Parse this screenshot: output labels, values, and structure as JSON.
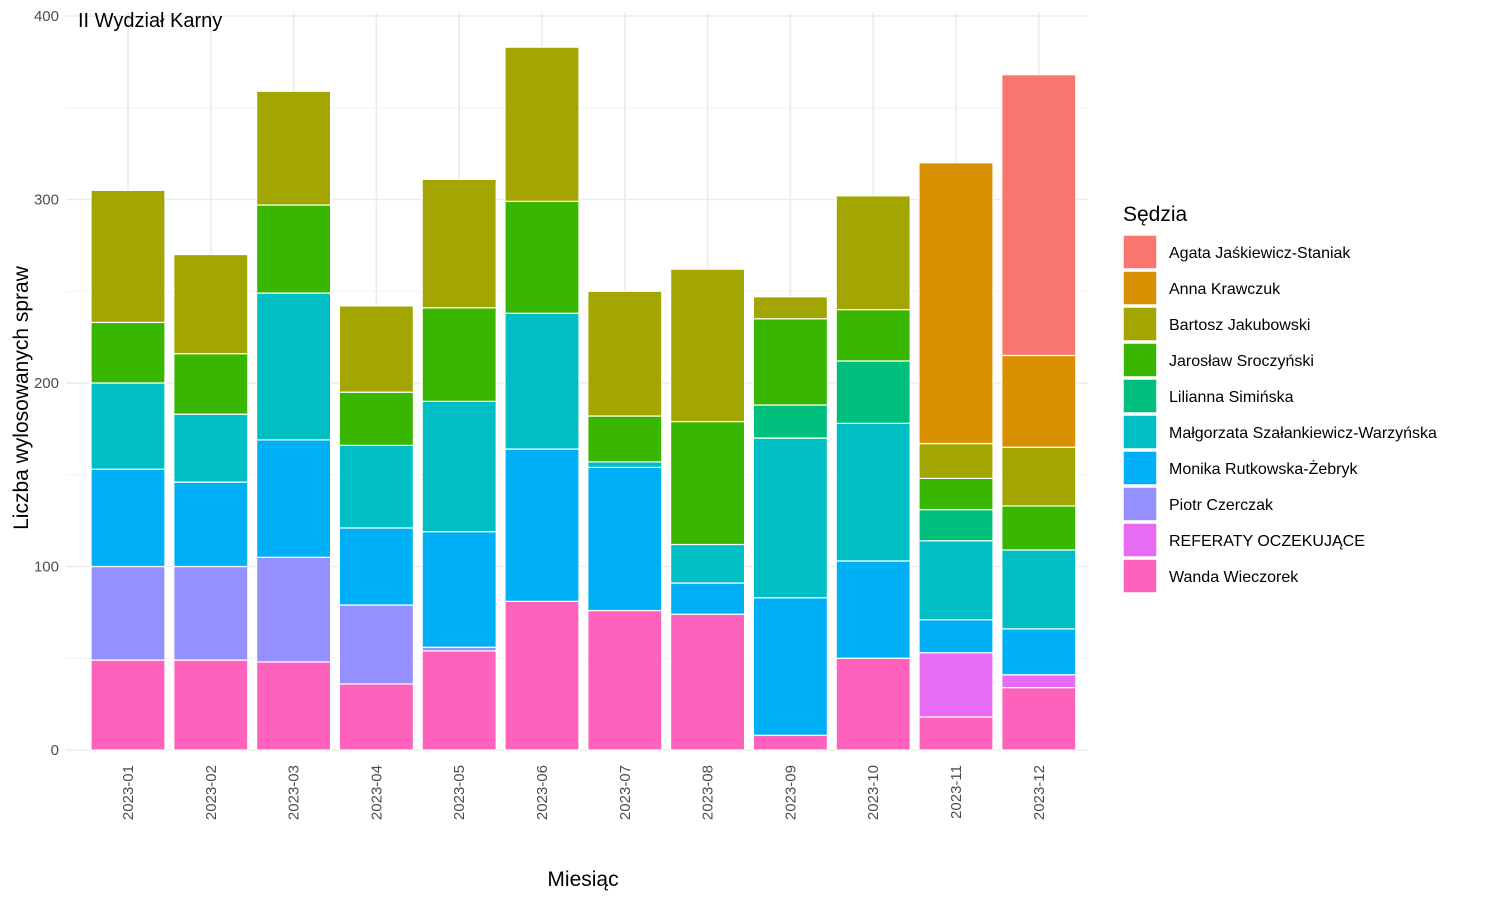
{
  "chart_data": {
    "type": "bar",
    "stacked": true,
    "title": "II Wydział Karny",
    "xlabel": "Miesiąc",
    "ylabel": "Liczba wylosowanych spraw",
    "ylim": [
      0,
      400
    ],
    "yticks": [
      0,
      100,
      200,
      300,
      400
    ],
    "grid": true,
    "legend_title": "Sędzia",
    "legend_position": "right",
    "categories": [
      "2023-01",
      "2023-02",
      "2023-03",
      "2023-04",
      "2023-05",
      "2023-06",
      "2023-07",
      "2023-08",
      "2023-09",
      "2023-10",
      "2023-11",
      "2023-12"
    ],
    "series": [
      {
        "name": "Agata Jaśkiewicz-Staniak",
        "color": "#F8766D",
        "values": [
          0,
          0,
          0,
          0,
          0,
          0,
          0,
          0,
          0,
          0,
          0,
          153
        ]
      },
      {
        "name": "Anna Krawczuk",
        "color": "#D89000",
        "values": [
          0,
          0,
          0,
          0,
          0,
          0,
          0,
          0,
          0,
          0,
          153,
          50
        ]
      },
      {
        "name": "Bartosz Jakubowski",
        "color": "#A3A500",
        "values": [
          72,
          54,
          62,
          47,
          70,
          84,
          68,
          83,
          12,
          62,
          19,
          32
        ]
      },
      {
        "name": "Jarosław Sroczyński",
        "color": "#39B600",
        "values": [
          33,
          33,
          48,
          29,
          51,
          61,
          25,
          67,
          47,
          28,
          17,
          24
        ]
      },
      {
        "name": "Lilianna Simińska",
        "color": "#00BF7D",
        "values": [
          0,
          0,
          0,
          0,
          0,
          0,
          0,
          0,
          18,
          34,
          17,
          0
        ]
      },
      {
        "name": "Małgorzata Szałankiewicz-Warzyńska",
        "color": "#00BFC4",
        "values": [
          47,
          37,
          80,
          45,
          71,
          74,
          3,
          21,
          87,
          75,
          43,
          43
        ]
      },
      {
        "name": "Monika Rutkowska-Żebryk",
        "color": "#00B0F6",
        "values": [
          53,
          46,
          64,
          42,
          63,
          83,
          78,
          17,
          75,
          53,
          18,
          25
        ]
      },
      {
        "name": "Piotr Czerczak",
        "color": "#9590FF",
        "values": [
          51,
          51,
          57,
          43,
          2,
          0,
          0,
          0,
          0,
          0,
          0,
          0
        ]
      },
      {
        "name": "REFERATY OCZEKUJĄCE",
        "color": "#E76BF3",
        "values": [
          0,
          0,
          0,
          0,
          0,
          0,
          0,
          0,
          0,
          0,
          35,
          7
        ]
      },
      {
        "name": "Wanda Wieczorek",
        "color": "#FF62BC",
        "values": [
          49,
          49,
          48,
          36,
          54,
          81,
          76,
          74,
          8,
          50,
          18,
          34
        ]
      }
    ]
  }
}
